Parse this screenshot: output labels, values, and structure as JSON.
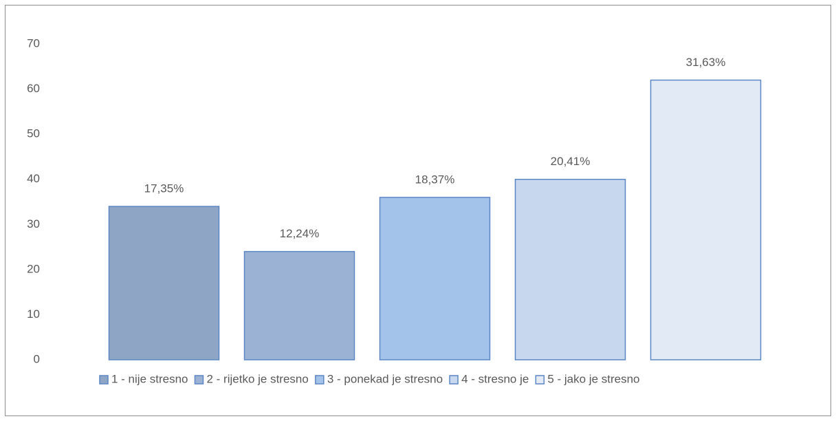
{
  "chart_data": {
    "type": "bar",
    "series": [
      {
        "name": "1 - nije stresno",
        "color": "#8fa5c6",
        "values": [
          34
        ],
        "value_labels": [
          "17,35%"
        ]
      },
      {
        "name": "2 - rijetko je stresno",
        "color": "#9cb2d4",
        "values": [
          24
        ],
        "value_labels": [
          "12,24%"
        ]
      },
      {
        "name": "3 - ponekad je stresno",
        "color": "#a4c3ea",
        "values": [
          36
        ],
        "value_labels": [
          "18,37%"
        ]
      },
      {
        "name": "4 - stresno je",
        "color": "#c6d7ee",
        "values": [
          40
        ],
        "value_labels": [
          "20,41%"
        ]
      },
      {
        "name": "5 - jako je stresno",
        "color": "#e2eaf6",
        "values": [
          62
        ],
        "value_labels": [
          "31,63%"
        ]
      }
    ],
    "ylim": [
      0,
      70
    ],
    "yticks": [
      0,
      10,
      20,
      30,
      40,
      50,
      60,
      70
    ],
    "grid": false,
    "legend": "bottom"
  }
}
